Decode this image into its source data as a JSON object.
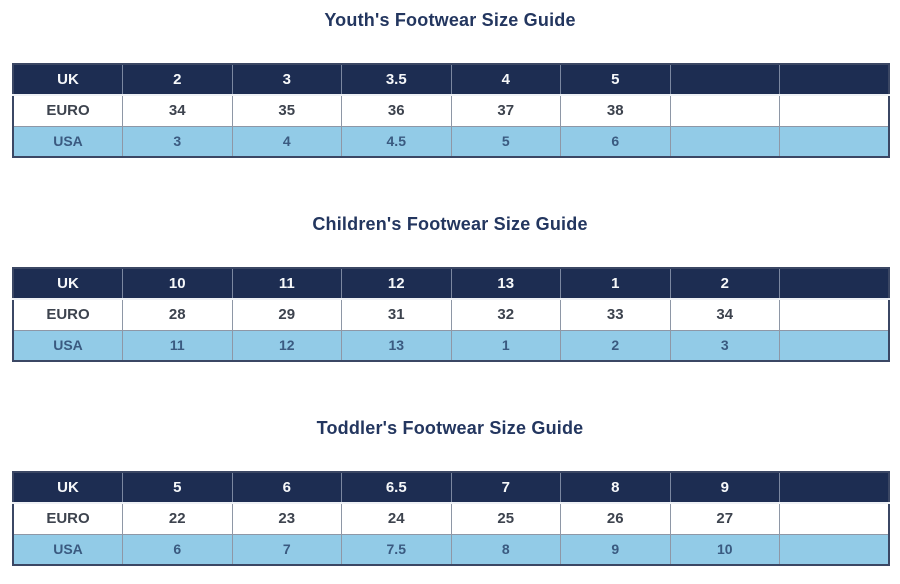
{
  "colors": {
    "header_row_bg": "#1d2d52",
    "header_row_text": "#f6f8fa",
    "euro_row_bg": "#ffffff",
    "euro_row_text": "#3d434e",
    "usa_row_bg": "#92cbe7",
    "usa_row_text": "#3a5a80",
    "title_text": "#23365f",
    "cell_border": "#8e97a6",
    "table_outline": "#3b4764"
  },
  "tables": [
    {
      "title": "Youth's Footwear Size Guide",
      "rows": [
        {
          "label": "UK",
          "values": [
            "2",
            "3",
            "3.5",
            "4",
            "5",
            "",
            ""
          ]
        },
        {
          "label": "EURO",
          "values": [
            "34",
            "35",
            "36",
            "37",
            "38",
            "",
            ""
          ]
        },
        {
          "label": "USA",
          "values": [
            "3",
            "4",
            "4.5",
            "5",
            "6",
            "",
            ""
          ]
        }
      ]
    },
    {
      "title": "Children's Footwear Size Guide",
      "rows": [
        {
          "label": "UK",
          "values": [
            "10",
            "11",
            "12",
            "13",
            "1",
            "2",
            ""
          ]
        },
        {
          "label": "EURO",
          "values": [
            "28",
            "29",
            "31",
            "32",
            "33",
            "34",
            ""
          ]
        },
        {
          "label": "USA",
          "values": [
            "11",
            "12",
            "13",
            "1",
            "2",
            "3",
            ""
          ]
        }
      ]
    },
    {
      "title": "Toddler's Footwear Size Guide",
      "rows": [
        {
          "label": "UK",
          "values": [
            "5",
            "6",
            "6.5",
            "7",
            "8",
            "9",
            ""
          ]
        },
        {
          "label": "EURO",
          "values": [
            "22",
            "23",
            "24",
            "25",
            "26",
            "27",
            ""
          ]
        },
        {
          "label": "USA",
          "values": [
            "6",
            "7",
            "7.5",
            "8",
            "9",
            "10",
            ""
          ]
        }
      ]
    }
  ]
}
